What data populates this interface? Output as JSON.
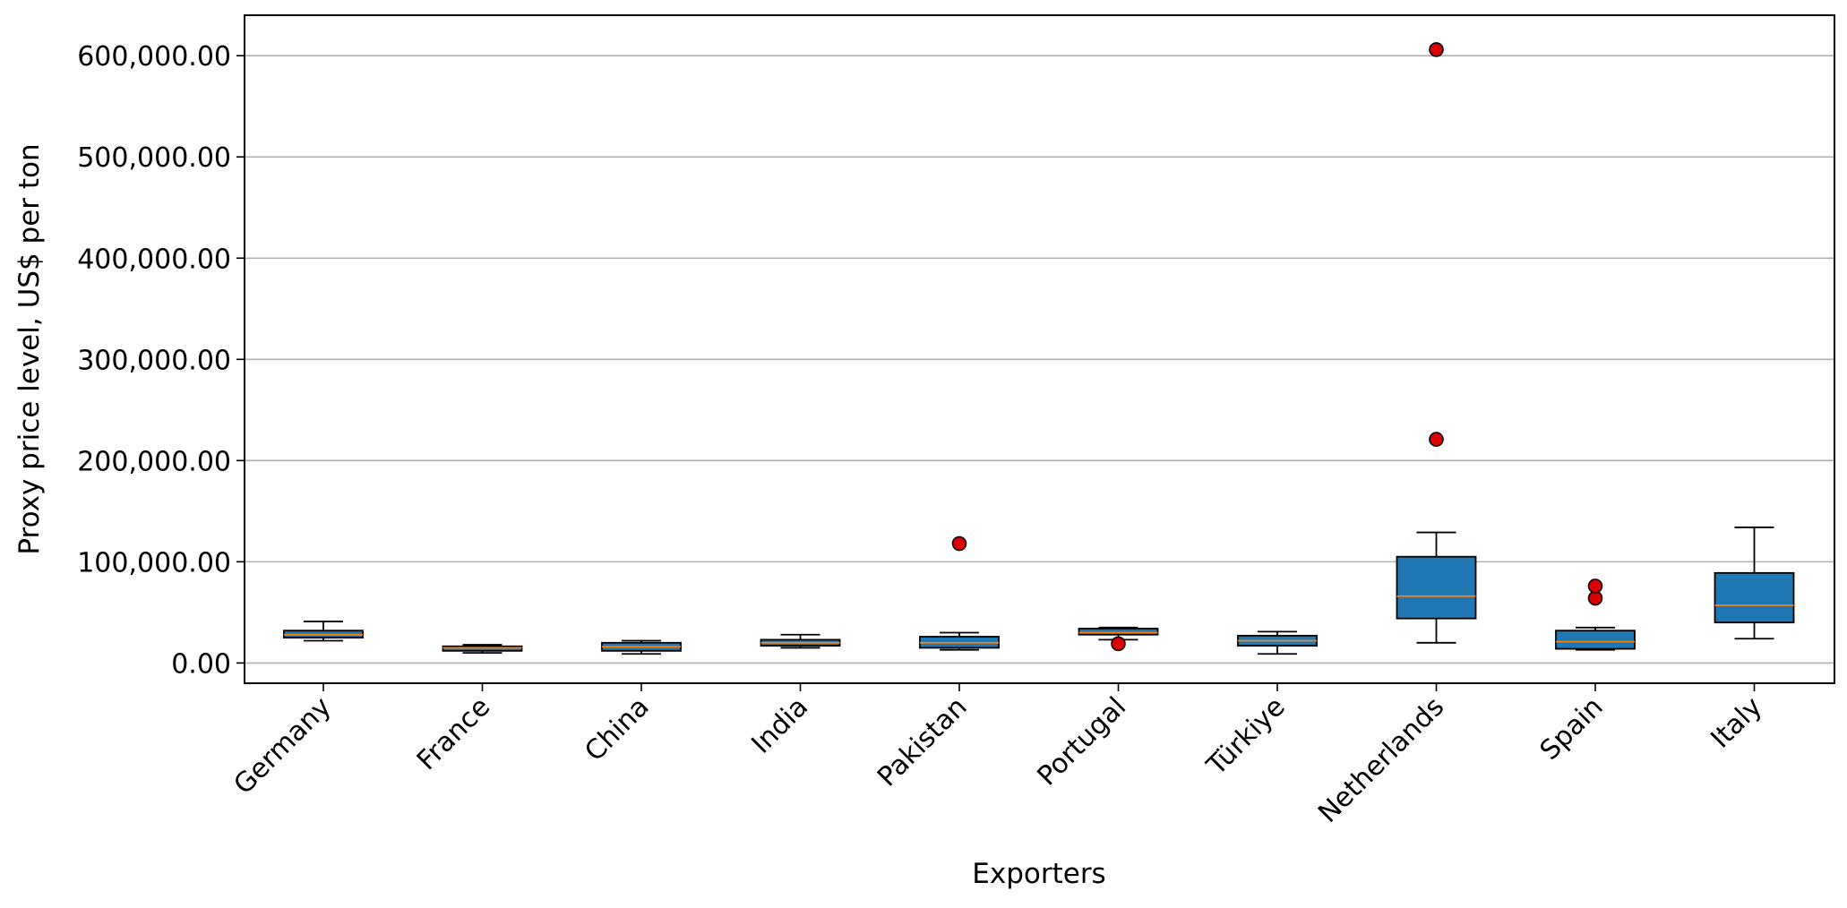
{
  "chart_data": {
    "type": "boxplot",
    "title": "",
    "xlabel": "Exporters",
    "ylabel": "Proxy price level, US$ per ton",
    "ylim": [
      -20000,
      640000
    ],
    "yticks": [
      0,
      100000,
      200000,
      300000,
      400000,
      500000,
      600000
    ],
    "ytick_labels": [
      "0.00",
      "100,000.00",
      "200,000.00",
      "300,000.00",
      "400,000.00",
      "500,000.00",
      "600,000.00"
    ],
    "grid": "horizontal",
    "categories": [
      "Germany",
      "France",
      "China",
      "India",
      "Pakistan",
      "Portugal",
      "Türkiye",
      "Netherlands",
      "Spain",
      "Italy"
    ],
    "boxes": [
      {
        "category": "Germany",
        "whisker_low": 22000,
        "q1": 25000,
        "median": 28000,
        "q3": 32000,
        "whisker_high": 41000,
        "outliers": []
      },
      {
        "category": "France",
        "whisker_low": 10000,
        "q1": 12000,
        "median": 15000,
        "q3": 16500,
        "whisker_high": 18000,
        "outliers": []
      },
      {
        "category": "China",
        "whisker_low": 9000,
        "q1": 12000,
        "median": 16000,
        "q3": 20000,
        "whisker_high": 22000,
        "outliers": []
      },
      {
        "category": "India",
        "whisker_low": 15000,
        "q1": 17000,
        "median": 20000,
        "q3": 23000,
        "whisker_high": 28000,
        "outliers": []
      },
      {
        "category": "Pakistan",
        "whisker_low": 13000,
        "q1": 15000,
        "median": 20000,
        "q3": 26000,
        "whisker_high": 30000,
        "outliers": [
          118000
        ]
      },
      {
        "category": "Portugal",
        "whisker_low": 23000,
        "q1": 28000,
        "median": 30000,
        "q3": 34000,
        "whisker_high": 35000,
        "outliers": [
          19000
        ]
      },
      {
        "category": "Türkiye",
        "whisker_low": 9000,
        "q1": 17000,
        "median": 22000,
        "q3": 27000,
        "whisker_high": 31000,
        "outliers": []
      },
      {
        "category": "Netherlands",
        "whisker_low": 20000,
        "q1": 44000,
        "median": 66000,
        "q3": 105000,
        "whisker_high": 129000,
        "outliers": [
          221000,
          606000
        ]
      },
      {
        "category": "Spain",
        "whisker_low": 13000,
        "q1": 14000,
        "median": 21000,
        "q3": 32000,
        "whisker_high": 35000,
        "outliers": [
          64000,
          76000
        ]
      },
      {
        "category": "Italy",
        "whisker_low": 24000,
        "q1": 40000,
        "median": 57000,
        "q3": 89000,
        "whisker_high": 134000,
        "outliers": []
      }
    ],
    "colors": {
      "box_fill": "#1f77b4",
      "median": "#ff7f0e",
      "outlier_fill": "#dd0000",
      "grid": "#b0b0b0",
      "axis": "#000000"
    }
  }
}
